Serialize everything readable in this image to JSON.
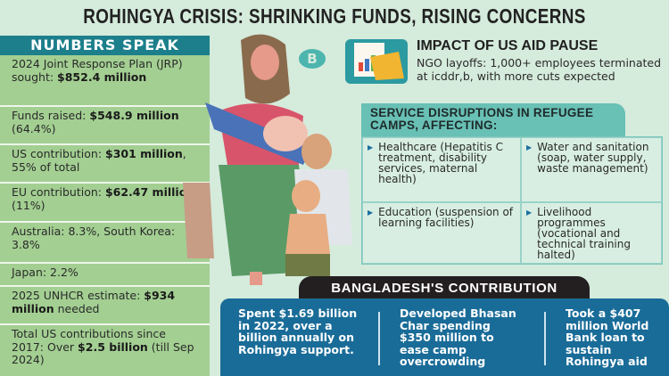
{
  "title": "ROHINGYA CRISIS: SHRINKING FUNDS, RISING CONCERNS",
  "logo_text": "B",
  "numbers_speak": {
    "heading": "NUMBERS SPEAK",
    "items": [
      {
        "pre": "2024 Joint Response Plan (JRP) sought: ",
        "bold": "$852.4 million",
        "post": ""
      },
      {
        "pre": "Funds raised: ",
        "bold": "$548.9 million",
        "post": " (64.4%)"
      },
      {
        "pre": "US contribution: ",
        "bold": "$301 million",
        "post": ", 55% of total"
      },
      {
        "pre": "EU contribution: ",
        "bold": "$62.47 million",
        "post": " (11%)"
      },
      {
        "pre": "Australia: 8.3%, South Korea: 3.8%",
        "bold": "",
        "post": ""
      },
      {
        "pre": "Japan: 2.2%",
        "bold": "",
        "post": ""
      },
      {
        "pre": "2025 UNHCR estimate: ",
        "bold": "$934 million",
        "post": " needed"
      },
      {
        "pre": "Total US contributions since 2017: Over ",
        "bold": "$2.5 billion",
        "post": " (till Sep 2024)"
      }
    ]
  },
  "impact": {
    "heading": "IMPACT OF US AID PAUSE",
    "text": "NGO layoffs: 1,000+ employees terminated at icddr,b, with more cuts expected"
  },
  "service_disruptions": {
    "heading": "SERVICE DISRUPTIONS IN REFUGEE CAMPS, AFFECTING:",
    "items": [
      "Healthcare (Hepatitis C treatment, disability services, maternal health)",
      "Water and sanitation (soap, water supply, waste management)",
      "Education (suspension of learning facilities)",
      "Livelihood programmes (vocational and technical training halted)"
    ]
  },
  "bangladesh": {
    "heading": "BANGLADESH'S CONTRIBUTION",
    "items": [
      "Spent $1.69 billion in 2022, over a billion annually on Rohingya support.",
      "Developed Bhasan Char spending $350 million to ease camp overcrowding",
      "Took a $407 million World Bank loan to sustain Rohingya aid"
    ]
  },
  "colors": {
    "background": "#d5ebdc",
    "teal": "#1c7f8b",
    "green_panel": "#a3cf92",
    "blue_panel": "#1a6c98",
    "light_teal": "#69c0b5"
  }
}
